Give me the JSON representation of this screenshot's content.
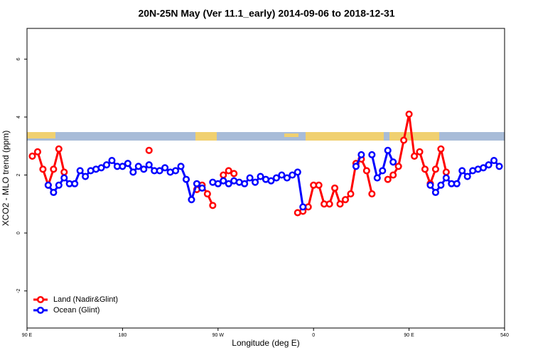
{
  "chart_data": {
    "type": "line",
    "title": "20N-25N May (Ver 11.1_early)   2014-09-06 to 2018-12-31",
    "x_label": "Longitude (deg E)",
    "y_label": "XCO2 - MLO trend (ppm)",
    "x": [
      95,
      100,
      105,
      110,
      115,
      120,
      125,
      130,
      135,
      140,
      145,
      150,
      155,
      160,
      165,
      170,
      175,
      180,
      185,
      190,
      195,
      200,
      205,
      210,
      215,
      220,
      225,
      230,
      235,
      240,
      245,
      250,
      255,
      260,
      265,
      270,
      275,
      280,
      285,
      290,
      295,
      300,
      305,
      310,
      315,
      320,
      325,
      330,
      335,
      340,
      345,
      350,
      355,
      360,
      365,
      370,
      375,
      380,
      385,
      390,
      395,
      400,
      405,
      410,
      415,
      420,
      425,
      430,
      435,
      440,
      445,
      450,
      455,
      460,
      465,
      470,
      475,
      480,
      485,
      490,
      495,
      500,
      505,
      510,
      515,
      520,
      525,
      530,
      535
    ],
    "series": [
      {
        "name": "Land (Nadir&Glint)",
        "color": "#ff0000",
        "values": [
          2.65,
          2.8,
          2.2,
          1.65,
          2.2,
          2.9,
          2.1,
          null,
          null,
          null,
          null,
          null,
          null,
          null,
          null,
          null,
          null,
          null,
          null,
          null,
          null,
          null,
          2.85,
          null,
          null,
          null,
          null,
          null,
          null,
          null,
          null,
          1.5,
          1.65,
          1.35,
          0.95,
          null,
          2.0,
          2.15,
          2.05,
          null,
          null,
          null,
          null,
          null,
          null,
          null,
          null,
          null,
          null,
          null,
          0.7,
          0.75,
          0.9,
          1.65,
          1.65,
          1.0,
          1.0,
          1.55,
          1.0,
          1.15,
          1.35,
          2.4,
          2.55,
          2.15,
          1.35,
          null,
          null,
          1.85,
          2.0,
          2.3,
          3.2,
          4.1,
          2.65,
          2.8,
          2.2,
          1.7,
          2.2,
          2.9,
          2.1,
          null,
          null,
          null,
          null,
          null,
          null,
          null,
          null,
          null,
          null
        ]
      },
      {
        "name": "Ocean (Glint)",
        "color": "#0000ff",
        "values": [
          null,
          null,
          null,
          1.65,
          1.4,
          1.65,
          1.9,
          1.7,
          1.7,
          2.15,
          1.95,
          2.15,
          2.2,
          2.25,
          2.35,
          2.5,
          2.3,
          2.3,
          2.4,
          2.1,
          2.3,
          2.2,
          2.35,
          2.15,
          2.15,
          2.25,
          2.1,
          2.15,
          2.3,
          1.85,
          1.15,
          1.7,
          1.55,
          null,
          1.75,
          1.7,
          1.8,
          1.7,
          1.8,
          1.75,
          1.7,
          1.9,
          1.75,
          1.95,
          1.85,
          1.8,
          1.9,
          2.0,
          1.9,
          2.0,
          2.1,
          0.9,
          null,
          null,
          null,
          null,
          null,
          null,
          null,
          null,
          null,
          2.3,
          2.7,
          null,
          2.7,
          1.9,
          2.15,
          2.85,
          2.45,
          null,
          null,
          null,
          null,
          null,
          null,
          1.65,
          1.4,
          1.65,
          1.9,
          1.7,
          1.7,
          2.15,
          1.95,
          2.15,
          2.2,
          2.25,
          2.35,
          2.5,
          2.3
        ]
      }
    ],
    "xlim": [
      90,
      540
    ],
    "xticks": [
      {
        "value": 90,
        "label": "90 E"
      },
      180,
      {
        "value": 270,
        "label": "90 W"
      },
      {
        "value": 360,
        "label": "0"
      },
      {
        "value": 450,
        "label": "90 E"
      },
      540
    ],
    "ylim": [
      -3.28,
      7.06
    ],
    "yticks": [
      -2,
      0,
      2,
      4,
      6
    ],
    "legend": "bottom-left"
  }
}
